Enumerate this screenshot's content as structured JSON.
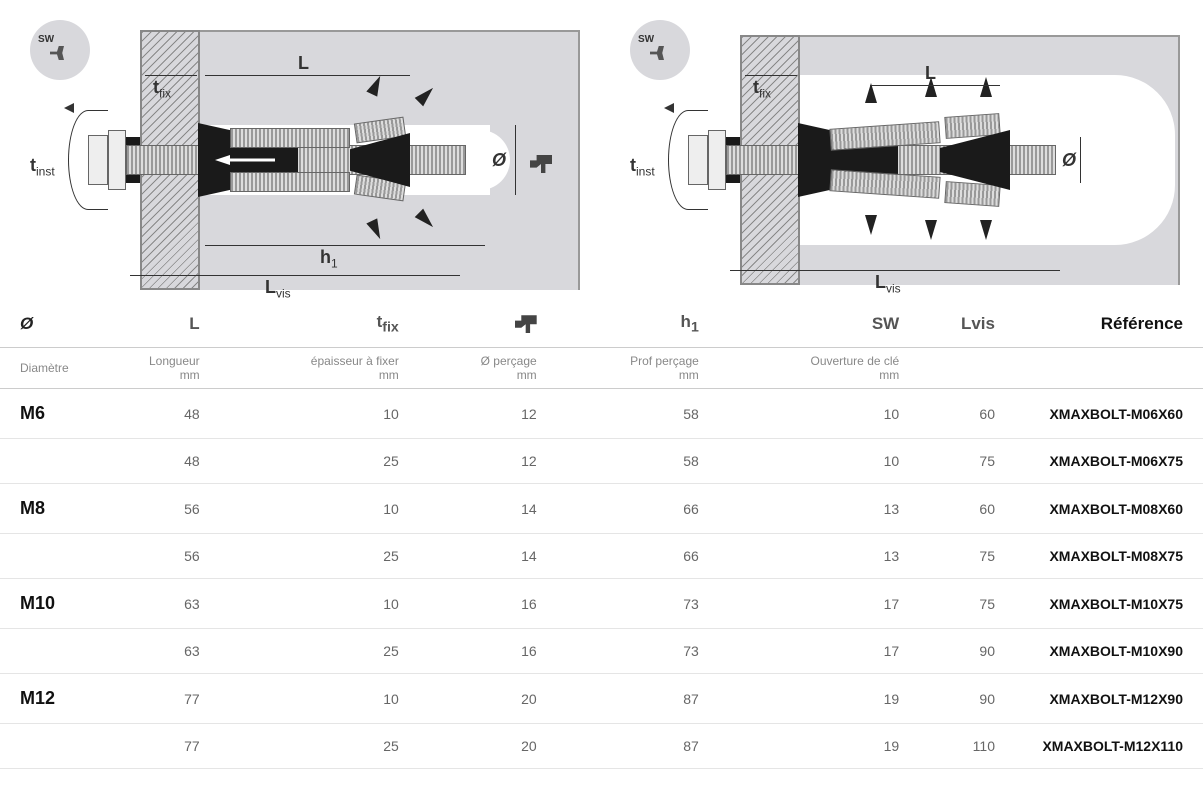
{
  "diagram": {
    "labels": {
      "sw": "SW",
      "tfix": "t",
      "tfix_sub": "fix",
      "L": "L",
      "tinst": "t",
      "tinst_sub": "inst",
      "h1": "h",
      "h1_sub": "1",
      "Lvis": "L",
      "Lvis_sub": "vis",
      "diameter": "Ø"
    },
    "colors": {
      "gray": "#d8d8dc",
      "line": "#333333",
      "black": "#1a1a1a"
    }
  },
  "table": {
    "headers": [
      "Ø",
      "L",
      "t_fix",
      "drill",
      "h_1",
      "SW",
      "Lvis",
      "Référence"
    ],
    "header_display": {
      "o": "Ø",
      "L": "L",
      "tfix": "t",
      "tfix_sub": "fix",
      "h1": "h",
      "h1_sub": "1",
      "SW": "SW",
      "Lvis": "Lvis",
      "ref": "Référence"
    },
    "subheaders": {
      "o": "Diamètre",
      "L_1": "Longueur",
      "L_2": "mm",
      "tfix_1": "épaisseur à fixer",
      "tfix_2": "mm",
      "drill_1": "Ø perçage",
      "drill_2": "mm",
      "h1_1": "Prof perçage",
      "h1_2": "mm",
      "SW_1": "Ouverture de clé",
      "SW_2": "mm",
      "Lvis": "",
      "ref": ""
    },
    "rows": [
      {
        "o": "M6",
        "L": "48",
        "tfix": "10",
        "drill": "12",
        "h1": "58",
        "SW": "10",
        "Lvis": "60",
        "ref": "XMAXBOLT-M06X60"
      },
      {
        "o": "",
        "L": "48",
        "tfix": "25",
        "drill": "12",
        "h1": "58",
        "SW": "10",
        "Lvis": "75",
        "ref": "XMAXBOLT-M06X75"
      },
      {
        "o": "M8",
        "L": "56",
        "tfix": "10",
        "drill": "14",
        "h1": "66",
        "SW": "13",
        "Lvis": "60",
        "ref": "XMAXBOLT-M08X60"
      },
      {
        "o": "",
        "L": "56",
        "tfix": "25",
        "drill": "14",
        "h1": "66",
        "SW": "13",
        "Lvis": "75",
        "ref": "XMAXBOLT-M08X75"
      },
      {
        "o": "M10",
        "L": "63",
        "tfix": "10",
        "drill": "16",
        "h1": "73",
        "SW": "17",
        "Lvis": "75",
        "ref": "XMAXBOLT-M10X75"
      },
      {
        "o": "",
        "L": "63",
        "tfix": "25",
        "drill": "16",
        "h1": "73",
        "SW": "17",
        "Lvis": "90",
        "ref": "XMAXBOLT-M10X90"
      },
      {
        "o": "M12",
        "L": "77",
        "tfix": "10",
        "drill": "20",
        "h1": "87",
        "SW": "19",
        "Lvis": "90",
        "ref": "XMAXBOLT-M12X90"
      },
      {
        "o": "",
        "L": "77",
        "tfix": "25",
        "drill": "20",
        "h1": "87",
        "SW": "19",
        "Lvis": "110",
        "ref": "XMAXBOLT-M12X110"
      }
    ]
  }
}
